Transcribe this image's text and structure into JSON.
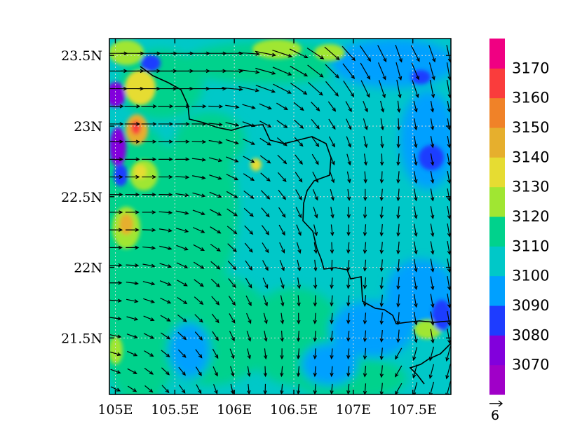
{
  "chart_data": {
    "type": "heatmap",
    "subtype": "filled-contour map with wind vector overlay",
    "region": {
      "lon_range": [
        104.95,
        107.82
      ],
      "lat_range": [
        21.1,
        23.62
      ]
    },
    "x_ticks": [
      {
        "value": 105.0,
        "label": "105E"
      },
      {
        "value": 105.5,
        "label": "105.5E"
      },
      {
        "value": 106.0,
        "label": "106E"
      },
      {
        "value": 106.5,
        "label": "106.5E"
      },
      {
        "value": 107.0,
        "label": "107E"
      },
      {
        "value": 107.5,
        "label": "107.5E"
      }
    ],
    "y_ticks": [
      {
        "value": 23.5,
        "label": "23.5N"
      },
      {
        "value": 23.0,
        "label": "23N"
      },
      {
        "value": 22.5,
        "label": "22.5N"
      },
      {
        "value": 22.0,
        "label": "22N"
      },
      {
        "value": 21.5,
        "label": "21.5N"
      }
    ],
    "grid": true,
    "colorbar": {
      "placement": "right",
      "labels": [
        "3070",
        "3080",
        "3090",
        "3100",
        "3110",
        "3120",
        "3130",
        "3140",
        "3150",
        "3160",
        "3170"
      ],
      "levels": [
        3070,
        3080,
        3090,
        3100,
        3110,
        3120,
        3130,
        3140,
        3150,
        3160,
        3170
      ],
      "colors": [
        "#a000c8",
        "#8200dc",
        "#1e3cff",
        "#00a0ff",
        "#00c8c8",
        "#00d28c",
        "#a0e632",
        "#e6dc32",
        "#e6af2d",
        "#f08228",
        "#fa3c3c",
        "#f00082"
      ]
    },
    "field_summary": {
      "background_value_range": [
        3100,
        3120
      ],
      "high_values_west_edge": [
        3130,
        3170
      ],
      "low_values_west_edge": [
        3070,
        3090
      ],
      "low_values_east_edge": [
        3080,
        3100
      ]
    },
    "vectors": {
      "reference_magnitude": "6",
      "flow_pattern": "westerly flow in north and west turning southward (northerly) over central and eastern parts",
      "grid_lon_step": 0.14,
      "grid_lat_step": 0.125
    }
  },
  "colors": {
    "coastline": "#000000",
    "gridline": "#d8d8d8",
    "arrow": "#000000"
  }
}
